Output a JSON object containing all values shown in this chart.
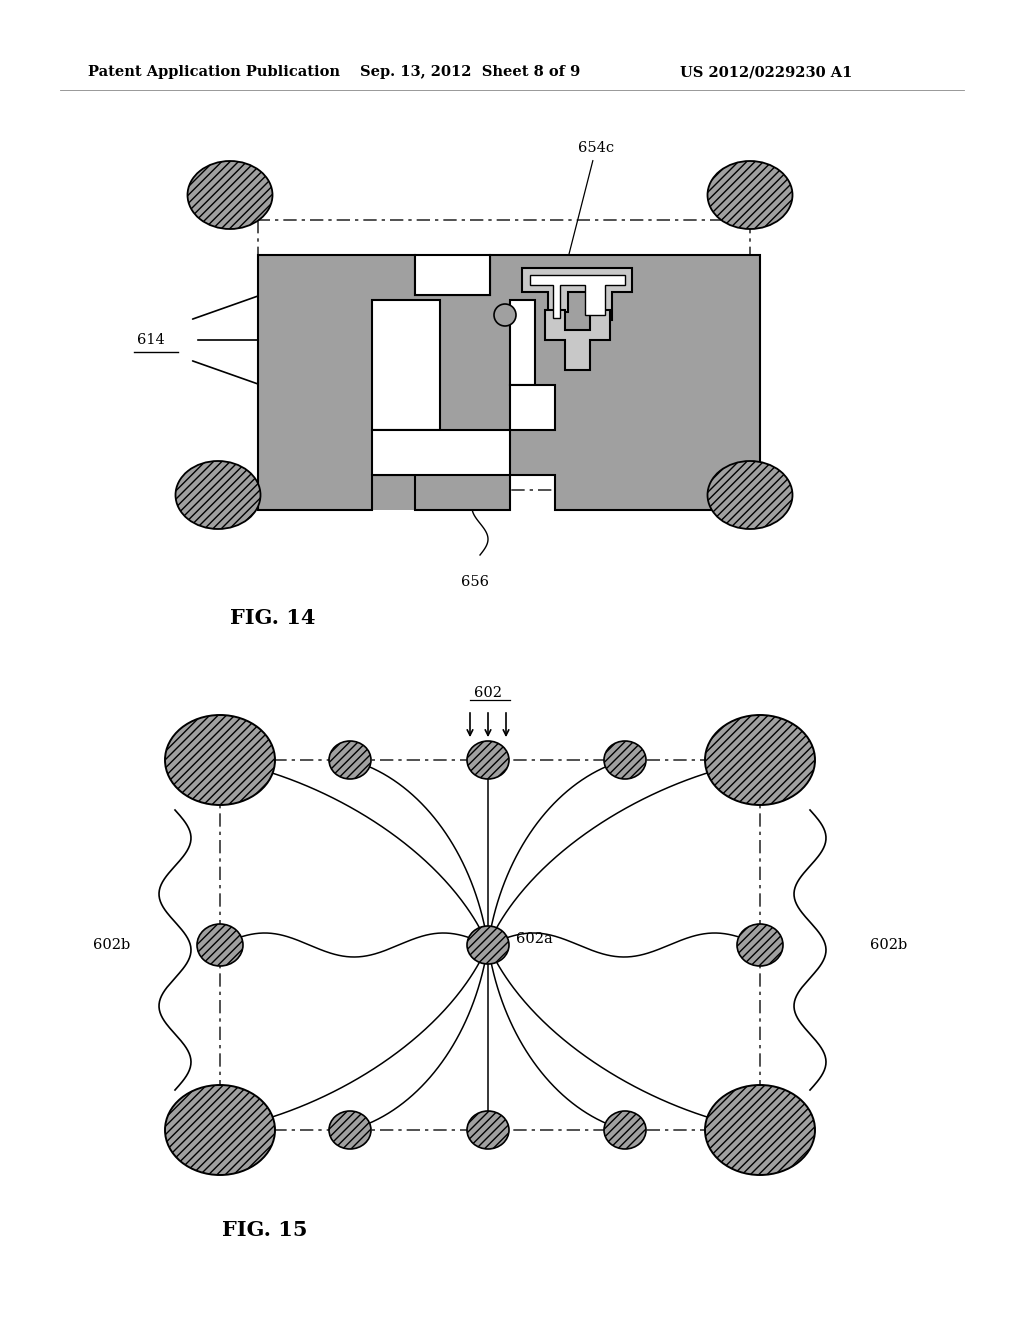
{
  "bg_color": "#ffffff",
  "text_color": "#000000",
  "header_left": "Patent Application Publication",
  "header_center": "Sep. 13, 2012  Sheet 8 of 9",
  "header_right": "US 2012/0229230 A1",
  "fig14_label": "FIG. 14",
  "fig15_label": "FIG. 15",
  "label_654c": "654c",
  "label_614": "614",
  "label_656": "656",
  "label_602": "602",
  "label_602a": "602a",
  "label_602b_left": "602b",
  "label_602b_right": "602b",
  "gray": "#a0a0a0",
  "dark_gray": "#888888",
  "line_color": "#000000"
}
